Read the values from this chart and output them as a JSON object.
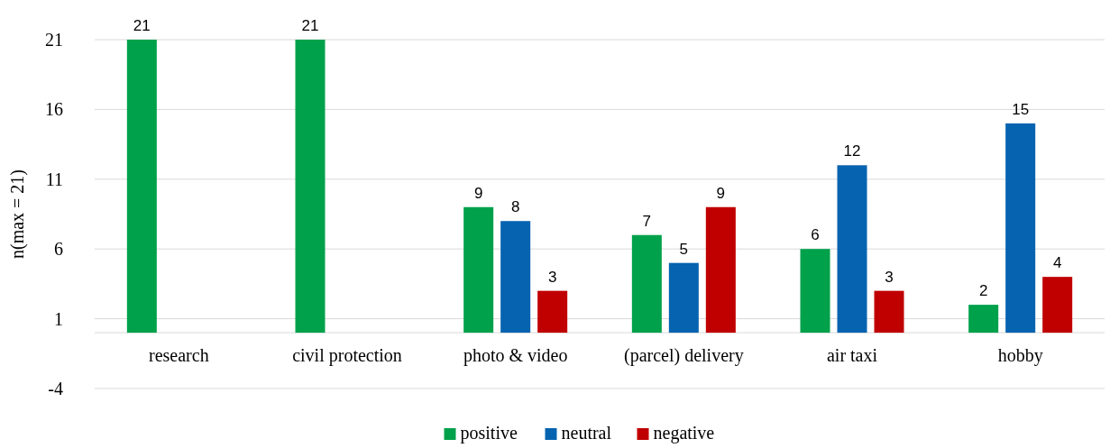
{
  "chart_data": {
    "type": "bar",
    "ylabel": "n(max = 21)",
    "categories": [
      "research",
      "civil protection",
      "photo & video",
      "(parcel) delivery",
      "air taxi",
      "hobby"
    ],
    "series": [
      {
        "name": "positive",
        "color": "#00a14b",
        "values": [
          21,
          21,
          9,
          7,
          6,
          2
        ]
      },
      {
        "name": "neutral",
        "color": "#0563b0",
        "values": [
          null,
          null,
          8,
          5,
          12,
          15
        ]
      },
      {
        "name": "negative",
        "color": "#c00000",
        "values": [
          null,
          null,
          3,
          9,
          3,
          4
        ]
      }
    ],
    "ylim": [
      -4,
      21
    ],
    "yticks": [
      -4,
      1,
      6,
      11,
      16,
      21
    ],
    "grid": "y",
    "data_labels": true,
    "legend": "bottom"
  }
}
